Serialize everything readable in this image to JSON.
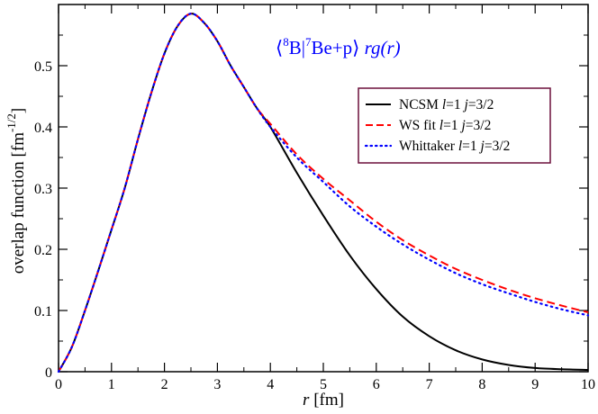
{
  "chart_data": {
    "type": "line",
    "title": "⟨8B|7Be+p⟩ rg(r)",
    "title_parts": {
      "open": "⟨",
      "sup1": "8",
      "el1": "B",
      "bar": "|",
      "sup2": "7",
      "el2": "Be+p",
      "close": "⟩",
      "expr": "rg(r)"
    },
    "xlabel": {
      "var": "r",
      "unit": "[fm]"
    },
    "ylabel": {
      "base": "overlap function [fm",
      "exp": "-1/2",
      "close": "]"
    },
    "xlim": [
      0,
      10
    ],
    "ylim": [
      0,
      0.6
    ],
    "x_ticks": [
      0,
      1,
      2,
      3,
      4,
      5,
      6,
      7,
      8,
      9,
      10
    ],
    "y_ticks": [
      0,
      0.1,
      0.2,
      0.3,
      0.4,
      0.5
    ],
    "x_tick_labels": [
      "0",
      "1",
      "2",
      "3",
      "4",
      "5",
      "6",
      "7",
      "8",
      "9",
      "10"
    ],
    "y_tick_labels": [
      "0",
      "0.1",
      "0.2",
      "0.3",
      "0.4",
      "0.5"
    ],
    "legend_position": "top-right",
    "series": [
      {
        "name": "NCSM",
        "legend": {
          "label": "NCSM",
          "l": "l",
          "lval": "=1",
          "j": "j",
          "jval": "=3/2"
        },
        "color": "#000000",
        "style": "solid",
        "x": [
          0,
          0.25,
          0.5,
          0.75,
          1.0,
          1.25,
          1.5,
          1.75,
          2.0,
          2.25,
          2.5,
          2.75,
          3.0,
          3.25,
          3.5,
          3.75,
          4.0,
          4.5,
          5.0,
          5.5,
          6.0,
          6.5,
          7.0,
          7.5,
          8.0,
          8.5,
          9.0,
          9.5,
          10.0
        ],
        "y": [
          0,
          0.04,
          0.1,
          0.165,
          0.232,
          0.3,
          0.38,
          0.455,
          0.52,
          0.565,
          0.585,
          0.57,
          0.54,
          0.5,
          0.465,
          0.43,
          0.4,
          0.325,
          0.255,
          0.19,
          0.135,
          0.09,
          0.058,
          0.035,
          0.02,
          0.011,
          0.006,
          0.004,
          0.003
        ]
      },
      {
        "name": "WS fit",
        "legend": {
          "label": "WS fit",
          "l": "l",
          "lval": "=1",
          "j": "j",
          "jval": "=3/2"
        },
        "color": "#ff0000",
        "style": "dashed",
        "x": [
          0,
          0.25,
          0.5,
          0.75,
          1.0,
          1.25,
          1.5,
          1.75,
          2.0,
          2.25,
          2.5,
          2.75,
          3.0,
          3.25,
          3.5,
          3.75,
          4.0,
          4.5,
          5.0,
          5.5,
          6.0,
          6.5,
          7.0,
          7.5,
          8.0,
          8.5,
          9.0,
          9.5,
          10.0
        ],
        "y": [
          0,
          0.04,
          0.1,
          0.165,
          0.232,
          0.3,
          0.38,
          0.455,
          0.52,
          0.565,
          0.585,
          0.57,
          0.54,
          0.5,
          0.465,
          0.43,
          0.405,
          0.355,
          0.315,
          0.28,
          0.245,
          0.215,
          0.19,
          0.168,
          0.15,
          0.134,
          0.12,
          0.108,
          0.097
        ]
      },
      {
        "name": "Whittaker",
        "legend": {
          "label": "Whittaker",
          "l": "l",
          "lval": "=1",
          "j": "j",
          "jval": "=3/2"
        },
        "color": "#0000ff",
        "style": "dotted",
        "x": [
          0,
          0.25,
          0.5,
          0.75,
          1.0,
          1.25,
          1.5,
          1.75,
          2.0,
          2.25,
          2.5,
          2.75,
          3.0,
          3.25,
          3.5,
          3.75,
          4.0,
          4.5,
          5.0,
          5.5,
          6.0,
          6.5,
          7.0,
          7.5,
          8.0,
          8.5,
          9.0,
          9.5,
          10.0
        ],
        "y": [
          0,
          0.04,
          0.1,
          0.165,
          0.232,
          0.3,
          0.38,
          0.455,
          0.52,
          0.565,
          0.585,
          0.57,
          0.54,
          0.5,
          0.465,
          0.43,
          0.4,
          0.35,
          0.31,
          0.27,
          0.237,
          0.208,
          0.183,
          0.161,
          0.143,
          0.128,
          0.114,
          0.102,
          0.092
        ]
      }
    ]
  }
}
